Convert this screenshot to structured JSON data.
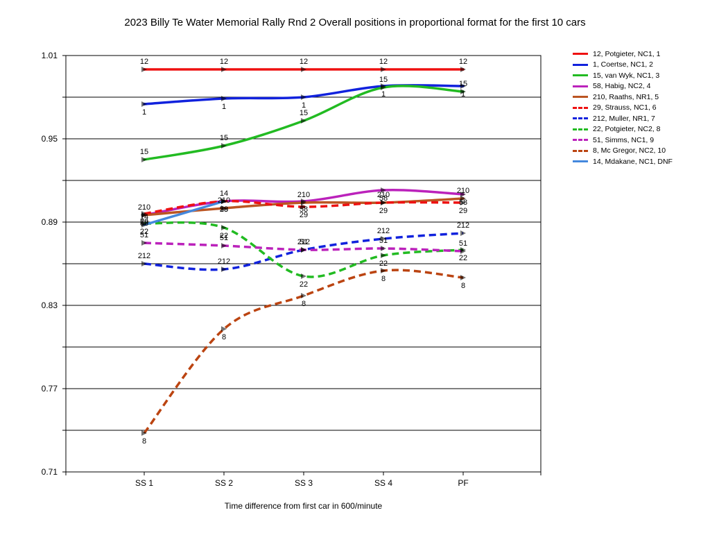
{
  "chart_data": {
    "type": "line",
    "title": "2023 Billy Te Water Memorial Rally Rnd 2  Overall positions in proportional format for the first 10 cars",
    "xlabel": "Time difference from first car in 600/minute",
    "ylabel": "",
    "categories": [
      "SS 1",
      "SS 2",
      "SS 3",
      "SS 4",
      "PF"
    ],
    "y_ticks": [
      "0.71",
      "0.77",
      "0.83",
      "0.89",
      "0.95",
      "1.01"
    ],
    "ylim": [
      0.71,
      1.01
    ],
    "grid": true,
    "legend_position": "right",
    "series": [
      {
        "name": "12, Potgieter, NC1, 1",
        "label": "12",
        "color": "#ee1111",
        "dashed": false,
        "values": [
          1.0,
          1.0,
          1.0,
          1.0,
          1.0
        ]
      },
      {
        "name": "1, Coertse, NC1, 2",
        "label": "1",
        "color": "#1122dd",
        "dashed": false,
        "values": [
          0.975,
          0.979,
          0.98,
          0.988,
          0.988
        ]
      },
      {
        "name": "15, van Wyk, NC1, 3",
        "label": "15",
        "color": "#22bb22",
        "dashed": false,
        "values": [
          0.935,
          0.945,
          0.963,
          0.987,
          0.984
        ]
      },
      {
        "name": "58, Habig, NC2, 4",
        "label": "58",
        "color": "#bb22bb",
        "dashed": false,
        "values": [
          0.895,
          0.905,
          0.905,
          0.913,
          0.91
        ]
      },
      {
        "name": "210, Raaths, NR1, 5",
        "label": "210",
        "color": "#bb5522",
        "dashed": false,
        "values": [
          0.895,
          0.9,
          0.904,
          0.904,
          0.907
        ]
      },
      {
        "name": "29, Strauss, NC1, 6",
        "label": "29",
        "color": "#ee1111",
        "dashed": true,
        "values": [
          0.896,
          0.905,
          0.901,
          0.904,
          0.904
        ]
      },
      {
        "name": "212, Muller, NR1, 7",
        "label": "212",
        "color": "#1122dd",
        "dashed": true,
        "values": [
          0.86,
          0.856,
          0.87,
          0.878,
          0.882
        ]
      },
      {
        "name": "22, Potgieter, NC2, 8",
        "label": "22",
        "color": "#22bb22",
        "dashed": true,
        "values": [
          0.889,
          0.886,
          0.851,
          0.866,
          0.87
        ]
      },
      {
        "name": "51, Simms, NC1, 9",
        "label": "51",
        "color": "#bb22bb",
        "dashed": true,
        "values": [
          0.875,
          0.873,
          0.87,
          0.871,
          0.869
        ]
      },
      {
        "name": "8, Mc Gregor, NC2, 10",
        "label": "8",
        "color": "#bb4411",
        "dashed": true,
        "values": [
          0.738,
          0.813,
          0.837,
          0.855,
          0.85
        ]
      },
      {
        "name": "14, Mdakane, NC1,  DNF",
        "label": "14",
        "color": "#4488dd",
        "dashed": false,
        "values": [
          0.888,
          0.905,
          null,
          null,
          null
        ]
      }
    ]
  }
}
